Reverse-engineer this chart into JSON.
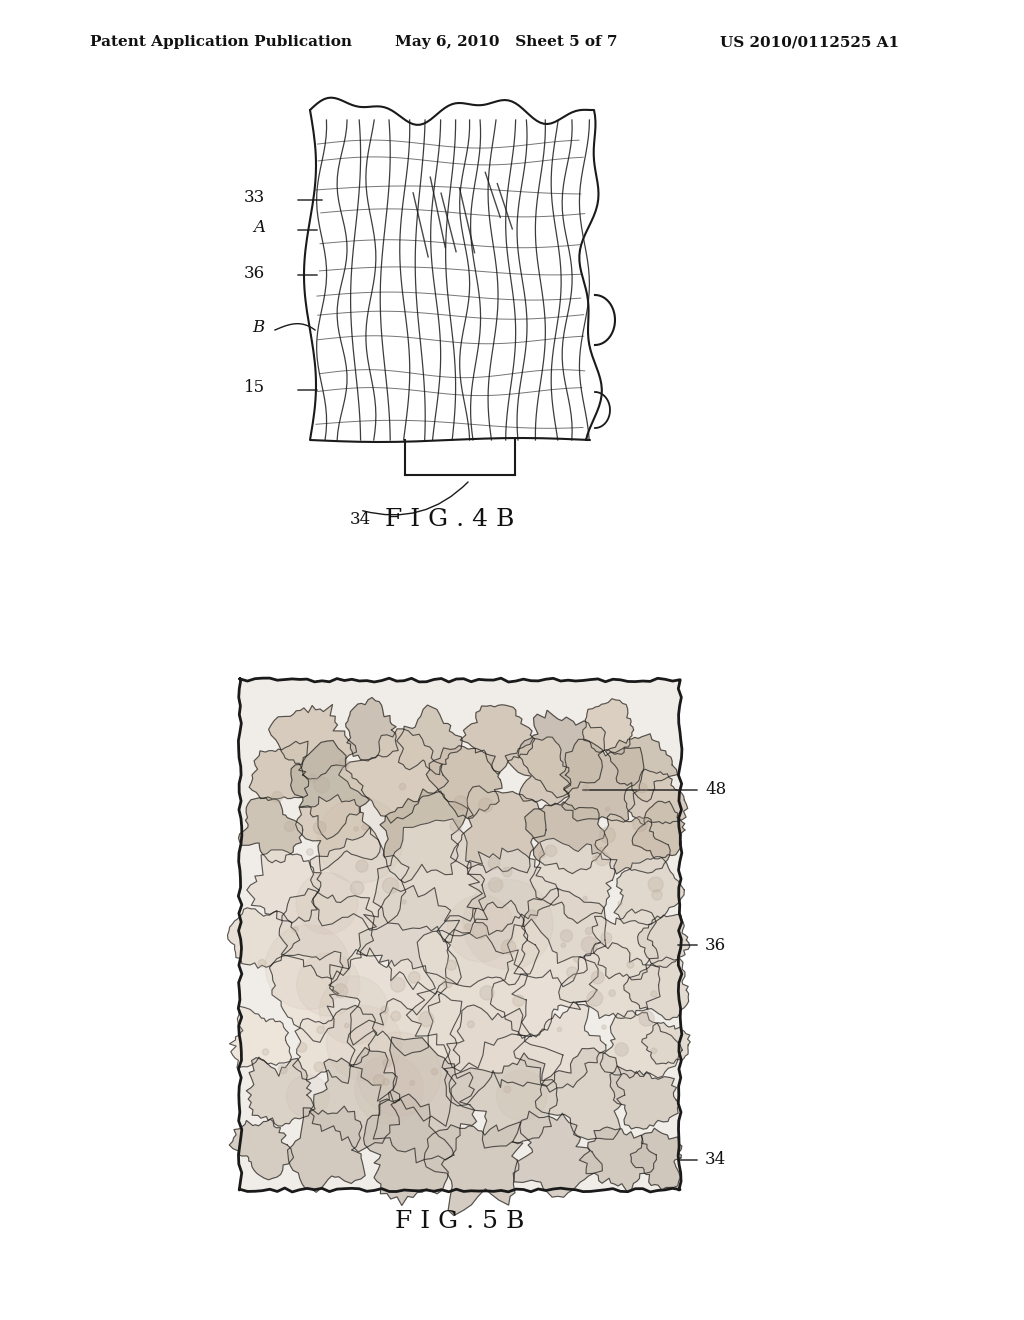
{
  "background_color": "#ffffff",
  "header_left": "Patent Application Publication",
  "header_mid": "May 6, 2010   Sheet 5 of 7",
  "header_right": "US 2010/0112525 A1",
  "fig4b_title": "F I G . 4 B",
  "fig5b_title": "F I G . 5 B",
  "fig4b_labels": [
    "33",
    "A",
    "36",
    "B",
    "15",
    "34"
  ],
  "fig5b_labels": [
    "48",
    "36",
    "34"
  ],
  "line_color": "#1a1a1a",
  "text_color": "#111111"
}
